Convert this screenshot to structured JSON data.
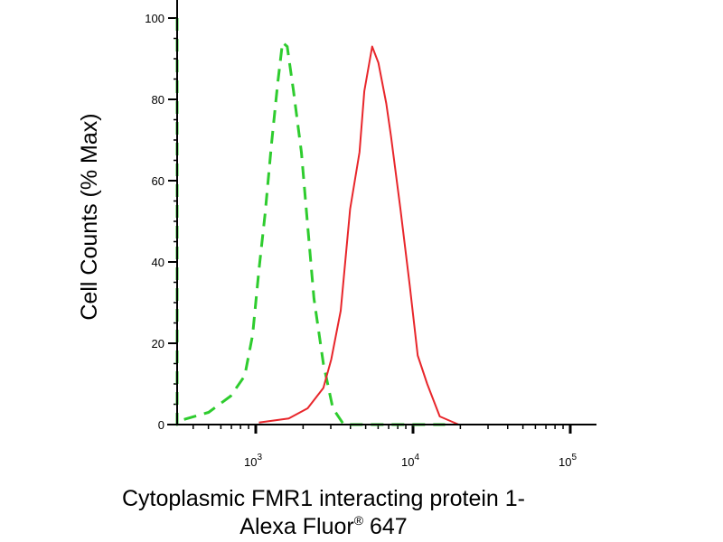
{
  "chart_data": {
    "type": "line",
    "title": "",
    "xlabel_line1": "Cytoplasmic FMR1 interacting protein 1-",
    "xlabel_line2_main": "Alexa Fluor",
    "xlabel_line2_sup": "®",
    "xlabel_line2_end": " 647",
    "ylabel": "Cell Counts (% Max)",
    "x_scale": "log",
    "xlim": [
      316,
      141000
    ],
    "ylim": [
      0,
      104
    ],
    "x_ticks": [
      {
        "base": "10",
        "exp": "3",
        "value": 1000
      },
      {
        "base": "10",
        "exp": "4",
        "value": 10000
      },
      {
        "base": "10",
        "exp": "5",
        "value": 100000
      }
    ],
    "y_ticks": [
      "0",
      "20",
      "40",
      "60",
      "80",
      "100"
    ],
    "grid": false,
    "series": [
      {
        "style": "dashed",
        "color": "#2ecc2e",
        "x": [
          316,
          316,
          331,
          501,
          692,
          851,
          955,
          1047,
          1148,
          1259,
          1380,
          1479,
          1585,
          1738,
          1950,
          2138,
          2344,
          2692,
          3090,
          3631,
          16000
        ],
        "y": [
          100,
          0,
          1,
          3,
          7,
          12,
          22,
          38,
          52,
          69,
          84,
          94,
          93,
          82,
          67,
          49,
          31,
          15,
          4,
          0,
          0
        ]
      },
      {
        "style": "solid",
        "color": "#e8262b",
        "x": [
          1047,
          1622,
          2138,
          2692,
          3020,
          3467,
          3981,
          4571,
          4898,
          5495,
          6026,
          6761,
          7244,
          8318,
          9550,
          10715,
          12303,
          14791,
          19498,
          141000
        ],
        "y": [
          0.5,
          1.5,
          4,
          9,
          16,
          28,
          53,
          67,
          82,
          93,
          89,
          79,
          71,
          53,
          34,
          17,
          10,
          2,
          0,
          0
        ]
      }
    ]
  }
}
